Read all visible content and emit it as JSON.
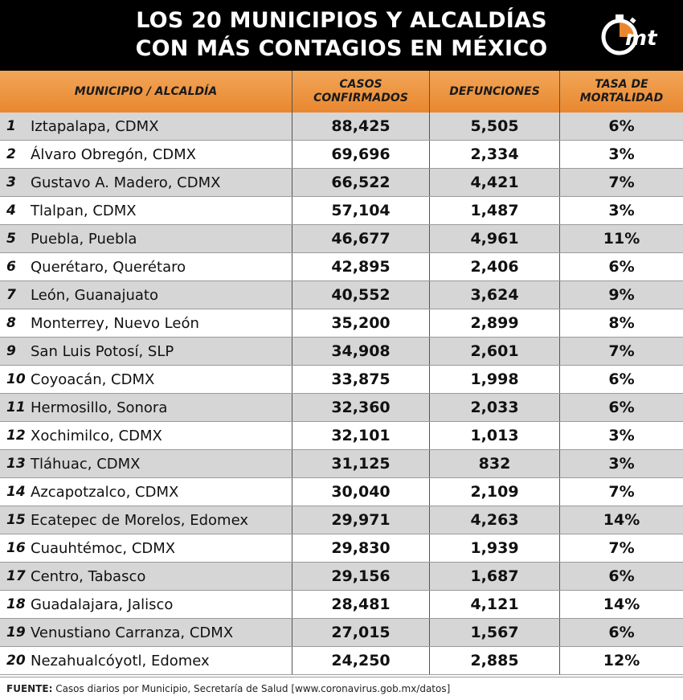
{
  "title": {
    "line1": "LOS 20 MUNICIPIOS Y ALCALDÍAS",
    "line2": "CON MÁS CONTAGIOS EN MÉXICO"
  },
  "logo": {
    "text": "mt",
    "icon": "stopwatch-logo-icon"
  },
  "headers": {
    "municipio": "MUNICIPIO / ALCALDÍA",
    "casos": "CASOS CONFIRMADOS",
    "defunciones": "DEFUNCIONES",
    "tasa": "TASA DE MORTALIDAD"
  },
  "rows": [
    {
      "n": "1",
      "name": "Iztapalapa, CDMX",
      "casos": "88,425",
      "def": "5,505",
      "tasa": "6%"
    },
    {
      "n": "2",
      "name": "Álvaro Obregón, CDMX",
      "casos": "69,696",
      "def": "2,334",
      "tasa": "3%"
    },
    {
      "n": "3",
      "name": "Gustavo A. Madero, CDMX",
      "casos": "66,522",
      "def": "4,421",
      "tasa": "7%"
    },
    {
      "n": "4",
      "name": "Tlalpan, CDMX",
      "casos": "57,104",
      "def": "1,487",
      "tasa": "3%"
    },
    {
      "n": "5",
      "name": "Puebla, Puebla",
      "casos": "46,677",
      "def": "4,961",
      "tasa": "11%"
    },
    {
      "n": "6",
      "name": "Querétaro, Querétaro",
      "casos": "42,895",
      "def": "2,406",
      "tasa": "6%"
    },
    {
      "n": "7",
      "name": "León, Guanajuato",
      "casos": "40,552",
      "def": "3,624",
      "tasa": "9%"
    },
    {
      "n": "8",
      "name": "Monterrey, Nuevo León",
      "casos": "35,200",
      "def": "2,899",
      "tasa": "8%"
    },
    {
      "n": "9",
      "name": "San Luis Potosí, SLP",
      "casos": "34,908",
      "def": "2,601",
      "tasa": "7%"
    },
    {
      "n": "10",
      "name": "Coyoacán, CDMX",
      "casos": "33,875",
      "def": "1,998",
      "tasa": "6%"
    },
    {
      "n": "11",
      "name": "Hermosillo, Sonora",
      "casos": "32,360",
      "def": "2,033",
      "tasa": "6%"
    },
    {
      "n": "12",
      "name": "Xochimilco, CDMX",
      "casos": "32,101",
      "def": "1,013",
      "tasa": "3%"
    },
    {
      "n": "13",
      "name": "Tláhuac, CDMX",
      "casos": "31,125",
      "def": "832",
      "tasa": "3%"
    },
    {
      "n": "14",
      "name": "Azcapotzalco, CDMX",
      "casos": "30,040",
      "def": "2,109",
      "tasa": "7%"
    },
    {
      "n": "15",
      "name": "Ecatepec de Morelos, Edomex",
      "casos": "29,971",
      "def": "4,263",
      "tasa": "14%"
    },
    {
      "n": "16",
      "name": "Cuauhtémoc, CDMX",
      "casos": "29,830",
      "def": "1,939",
      "tasa": "7%"
    },
    {
      "n": "17",
      "name": "Centro, Tabasco",
      "casos": "29,156",
      "def": "1,687",
      "tasa": "6%"
    },
    {
      "n": "18",
      "name": "Guadalajara, Jalisco",
      "casos": "28,481",
      "def": "4,121",
      "tasa": "14%"
    },
    {
      "n": "19",
      "name": "Venustiano Carranza, CDMX",
      "casos": "27,015",
      "def": "1,567",
      "tasa": "6%"
    },
    {
      "n": "20",
      "name": "Nezahualcóyotl, Edomex",
      "casos": "24,250",
      "def": "2,885",
      "tasa": "12%"
    }
  ],
  "footer": {
    "label": "FUENTE:",
    "text": " Casos diarios por Municipio, Secretaría de Salud [www.coronavirus.gob.mx/datos]"
  },
  "colors": {
    "header_bg": "#000000",
    "accent": "#e98730",
    "row_alt": "#d6d6d6"
  }
}
